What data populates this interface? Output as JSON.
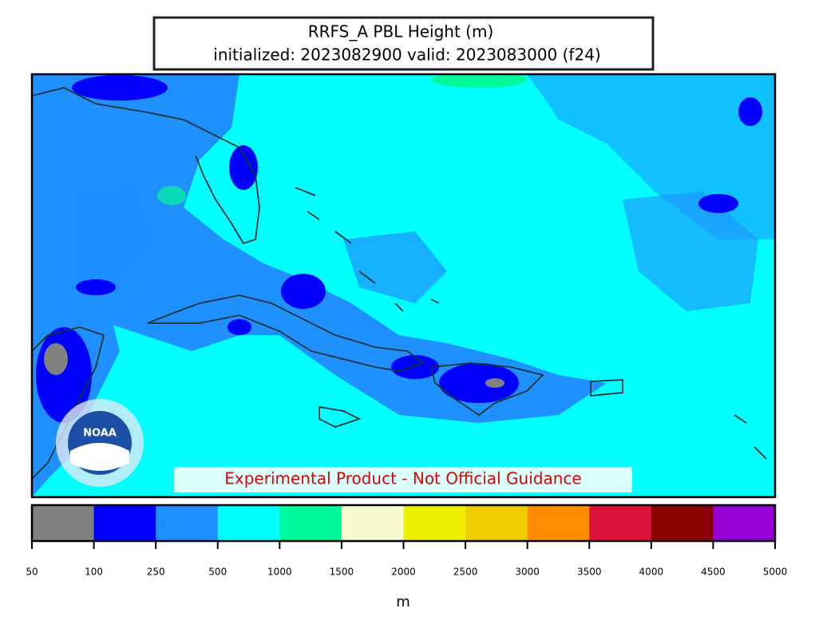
{
  "title": [
    "RRFS_A PBL Height (m)",
    "initialized: 2023082900 valid: 2023083000 (f24)"
  ],
  "notice": "Experimental Product - Not Official Guidance",
  "logo": "NOAA",
  "colorbar": {
    "ticks": [
      50,
      100,
      250,
      500,
      1000,
      1500,
      2000,
      2500,
      3000,
      3500,
      4000,
      4500,
      5000
    ],
    "colors": [
      "#808080",
      "#0000ff",
      "#1e90ff",
      "#00ffff",
      "#00fa9a",
      "#fafad2",
      "#eeee00",
      "#eecd00",
      "#ff8c00",
      "#dc143c",
      "#8b0000",
      "#9400d3"
    ],
    "label": "m"
  }
}
